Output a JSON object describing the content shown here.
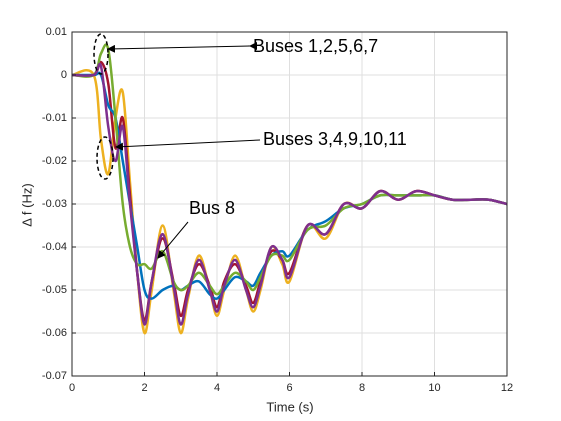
{
  "chart_data": {
    "type": "line",
    "xlabel": "Time (s)",
    "ylabel": "Δ f (Hz)",
    "annotations": [
      "Buses 1,2,5,6,7",
      "Buses 3,4,9,10,11",
      "Bus 8"
    ],
    "x": [
      0,
      0.6,
      0.8,
      1.0,
      1.2,
      1.4,
      1.6,
      1.8,
      2.0,
      2.2,
      2.5,
      2.8,
      3.0,
      3.2,
      3.5,
      3.8,
      4.0,
      4.2,
      4.5,
      4.8,
      5.0,
      5.2,
      5.5,
      5.8,
      6.0,
      6.5,
      7.0,
      7.5,
      8.0,
      8.5,
      9.0,
      9.5,
      10.0,
      10.5,
      11.0,
      11.5,
      12.0
    ],
    "series": [
      {
        "color": "#edb120",
        "values": [
          0,
          0,
          -0.015,
          -0.023,
          -0.01,
          -0.004,
          -0.025,
          -0.046,
          -0.06,
          -0.05,
          -0.035,
          -0.05,
          -0.06,
          -0.052,
          -0.042,
          -0.05,
          -0.056,
          -0.05,
          -0.042,
          -0.05,
          -0.055,
          -0.05,
          -0.04,
          -0.044,
          -0.048,
          -0.035,
          -0.038,
          -0.03,
          -0.031,
          -0.027,
          -0.029,
          -0.027,
          -0.028,
          -0.029,
          -0.029,
          -0.029,
          -0.03
        ]
      },
      {
        "color": "#a2142f",
        "values": [
          0,
          0,
          0.003,
          -0.002,
          -0.017,
          -0.01,
          -0.028,
          -0.046,
          -0.057,
          -0.048,
          -0.038,
          -0.048,
          -0.056,
          -0.05,
          -0.044,
          -0.049,
          -0.054,
          -0.048,
          -0.044,
          -0.049,
          -0.053,
          -0.048,
          -0.041,
          -0.043,
          -0.046,
          -0.035,
          -0.037,
          -0.03,
          -0.031,
          -0.027,
          -0.029,
          -0.027,
          -0.028,
          -0.029,
          -0.029,
          -0.029,
          -0.03
        ]
      },
      {
        "color": "#0072bd",
        "values": [
          0,
          0,
          0,
          -0.007,
          -0.01,
          -0.02,
          -0.03,
          -0.04,
          -0.05,
          -0.052,
          -0.05,
          -0.049,
          -0.05,
          -0.049,
          -0.048,
          -0.051,
          -0.052,
          -0.05,
          -0.047,
          -0.048,
          -0.049,
          -0.046,
          -0.042,
          -0.041,
          -0.042,
          -0.036,
          -0.034,
          -0.031,
          -0.03,
          -0.028,
          -0.028,
          -0.028,
          -0.028,
          -0.029,
          -0.029,
          -0.029,
          -0.03
        ]
      },
      {
        "color": "#77ac30",
        "values": [
          0,
          0,
          0.005,
          0.006,
          -0.01,
          -0.03,
          -0.04,
          -0.044,
          -0.044,
          -0.045,
          -0.041,
          -0.048,
          -0.05,
          -0.049,
          -0.046,
          -0.049,
          -0.051,
          -0.049,
          -0.046,
          -0.048,
          -0.05,
          -0.047,
          -0.042,
          -0.042,
          -0.043,
          -0.036,
          -0.035,
          -0.031,
          -0.03,
          -0.028,
          -0.028,
          -0.028,
          -0.028,
          -0.029,
          -0.029,
          -0.029,
          -0.03
        ]
      },
      {
        "color": "#7e2f8e",
        "values": [
          0,
          0,
          0.002,
          -0.012,
          -0.02,
          -0.012,
          -0.03,
          -0.046,
          -0.058,
          -0.048,
          -0.037,
          -0.049,
          -0.058,
          -0.051,
          -0.043,
          -0.05,
          -0.055,
          -0.049,
          -0.043,
          -0.05,
          -0.054,
          -0.049,
          -0.04,
          -0.043,
          -0.047,
          -0.035,
          -0.037,
          -0.03,
          -0.031,
          -0.027,
          -0.029,
          -0.027,
          -0.028,
          -0.029,
          -0.029,
          -0.029,
          -0.03
        ]
      }
    ],
    "xlim": [
      0,
      12
    ],
    "xticks": [
      0,
      2,
      4,
      6,
      8,
      10,
      12
    ],
    "ylim": [
      -0.07,
      0.01
    ],
    "yticks": [
      0.01,
      0,
      -0.01,
      -0.02,
      -0.03,
      -0.04,
      -0.05,
      -0.06,
      -0.07
    ],
    "grid": true
  }
}
